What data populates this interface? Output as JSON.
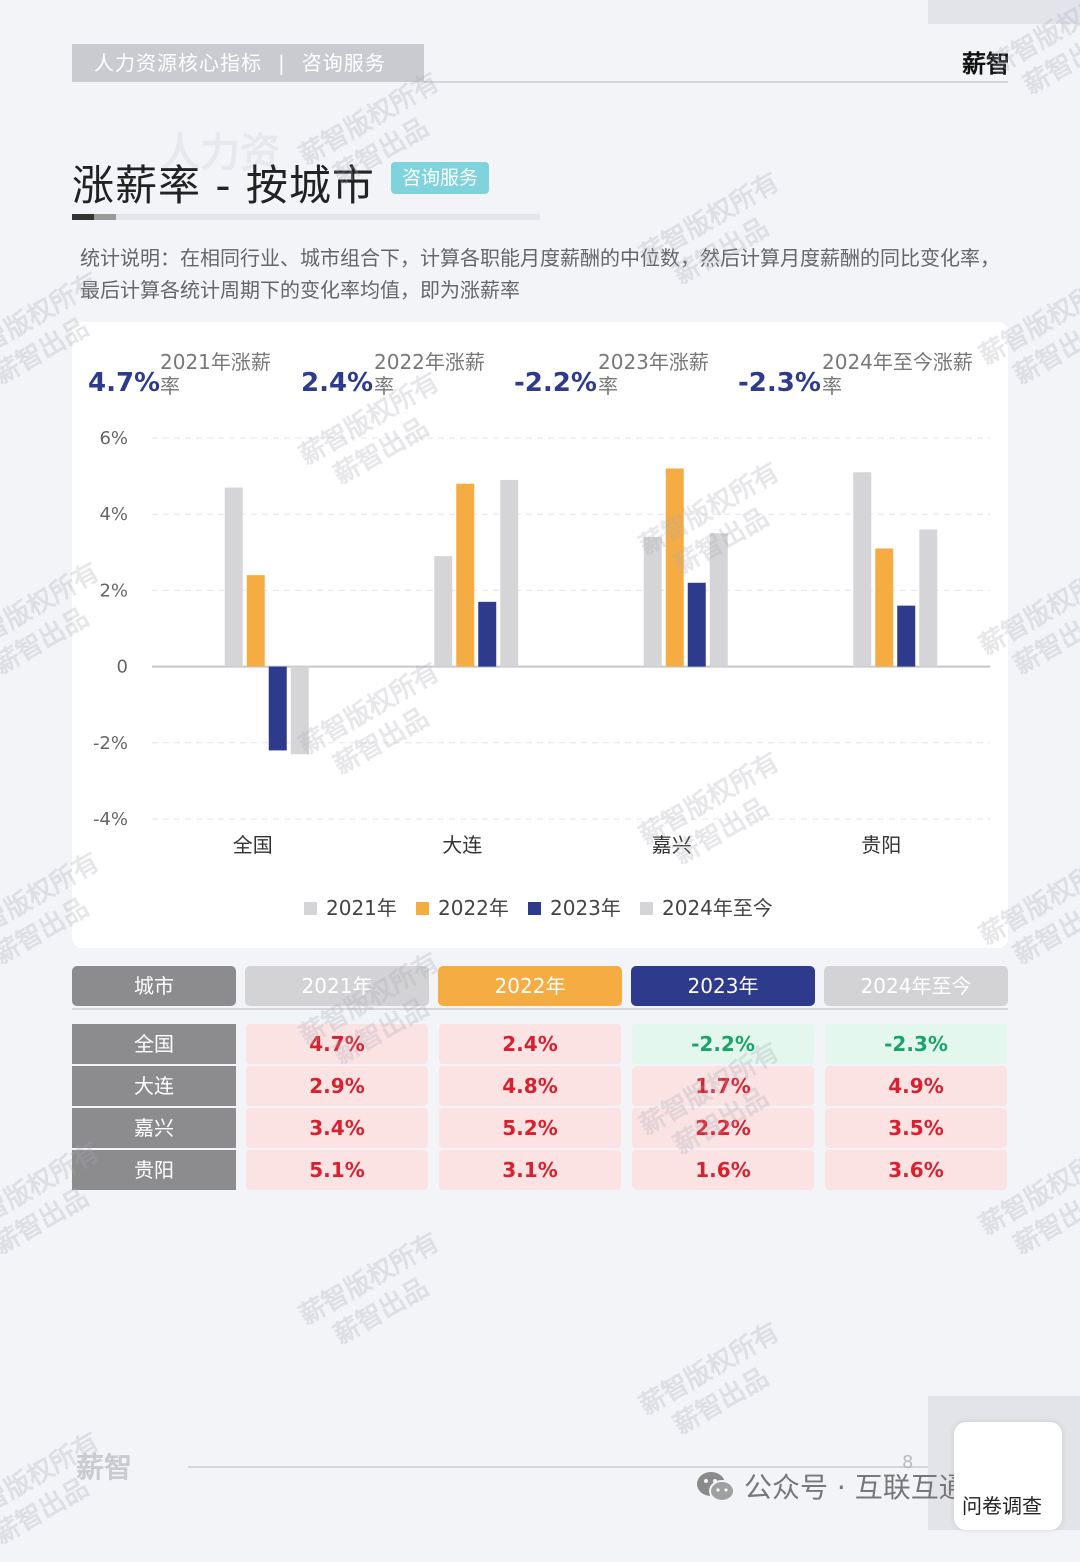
{
  "header": {
    "section": "人力资源核心指标",
    "separator": "|",
    "sub": "咨询服务",
    "brand": "薪智"
  },
  "title": {
    "ghost": "人力资",
    "main": "涨薪率 - 按城市",
    "tag": "咨询服务"
  },
  "description": "统计说明：在相同行业、城市组合下，计算各职能月度薪酬的中位数，然后计算月度薪酬的同比变化率，最后计算各统计周期下的变化率均值，即为涨薪率",
  "kpis": [
    {
      "value": "4.7%",
      "label": "2021年涨薪率"
    },
    {
      "value": "2.4%",
      "label": "2022年涨薪率"
    },
    {
      "value": "-2.2%",
      "label": "2023年涨薪率"
    },
    {
      "value": "-2.3%",
      "label": "2024年至今涨薪率"
    }
  ],
  "chart_data": {
    "type": "bar",
    "title": "涨薪率 - 按城市",
    "categories": [
      "全国",
      "大连",
      "嘉兴",
      "贵阳"
    ],
    "series": [
      {
        "name": "2021年",
        "color": "#d5d5d7",
        "values": [
          4.7,
          2.9,
          3.4,
          5.1
        ]
      },
      {
        "name": "2022年",
        "color": "#f5ad43",
        "values": [
          2.4,
          4.8,
          5.2,
          3.1
        ]
      },
      {
        "name": "2023年",
        "color": "#2e3a8c",
        "values": [
          -2.2,
          1.7,
          2.2,
          1.6
        ]
      },
      {
        "name": "2024年至今",
        "color": "#d5d5d7",
        "values": [
          -2.3,
          4.9,
          3.5,
          3.6
        ]
      }
    ],
    "ylim": [
      -4,
      6
    ],
    "yticks": [
      {
        "value": 6,
        "label": "6%"
      },
      {
        "value": 4,
        "label": "4%"
      },
      {
        "value": 2,
        "label": "2%"
      },
      {
        "value": 0,
        "label": "0"
      },
      {
        "value": -2,
        "label": "-2%"
      },
      {
        "value": -4,
        "label": "-4%"
      }
    ],
    "grid": true,
    "legend": "bottom"
  },
  "table": {
    "headers": [
      {
        "label": "城市",
        "color": "#8c8c8e"
      },
      {
        "label": "2021年",
        "color": "#d3d3d5"
      },
      {
        "label": "2022年",
        "color": "#f5ad43"
      },
      {
        "label": "2023年",
        "color": "#2e3a8c"
      },
      {
        "label": "2024年至今",
        "color": "#d3d3d5"
      }
    ],
    "rows": [
      {
        "city": "全国",
        "cells": [
          "4.7%",
          "2.4%",
          "-2.2%",
          "-2.3%"
        ]
      },
      {
        "city": "大连",
        "cells": [
          "2.9%",
          "4.8%",
          "1.7%",
          "4.9%"
        ]
      },
      {
        "city": "嘉兴",
        "cells": [
          "3.4%",
          "5.2%",
          "2.2%",
          "3.5%"
        ]
      },
      {
        "city": "贵阳",
        "cells": [
          "5.1%",
          "3.1%",
          "1.6%",
          "3.6%"
        ]
      }
    ]
  },
  "watermark": {
    "line1": "薪智版权所有",
    "line2": "薪智出品"
  },
  "footer": {
    "logo": "薪智",
    "page": "8",
    "wechat": "公众号 · 互联互通社区",
    "survey": "问卷调查"
  }
}
